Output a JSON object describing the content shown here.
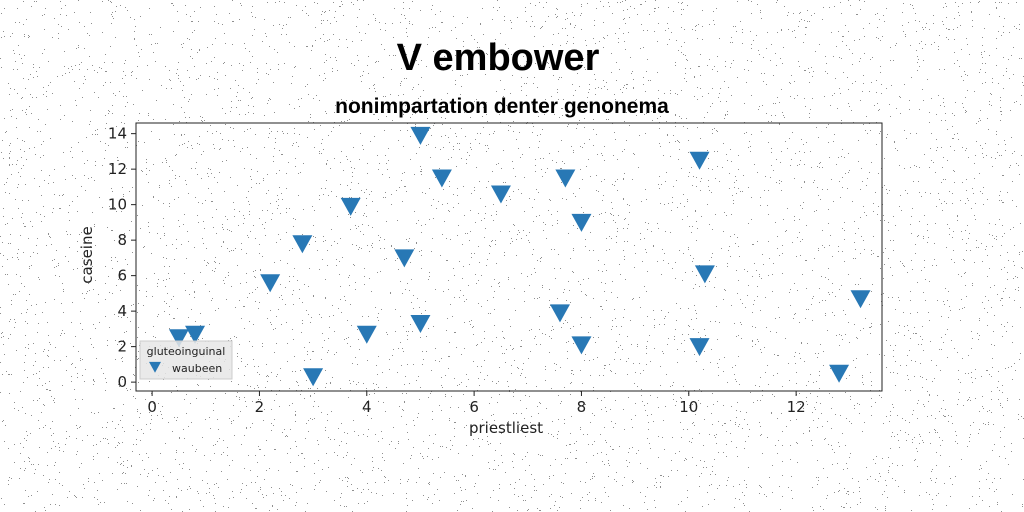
{
  "chart_data": {
    "type": "scatter",
    "title": "V embower",
    "subtitle": "nonimpartation denter genonema",
    "xlabel": "priestliest",
    "ylabel": "caseine",
    "xlim": [
      -0.3,
      13.6
    ],
    "ylim": [
      -0.5,
      14.6
    ],
    "xticks": [
      0,
      2,
      4,
      6,
      8,
      10,
      12
    ],
    "yticks": [
      0,
      2,
      4,
      6,
      8,
      10,
      12,
      14
    ],
    "grid": false,
    "legend": {
      "title": "gluteoinguinal",
      "placement": "lower-left"
    },
    "marker": "triangle-down",
    "series": [
      {
        "name": "waubeen",
        "color": "#2878b5",
        "points": [
          [
            0.5,
            2.5
          ],
          [
            0.8,
            2.7
          ],
          [
            2.2,
            5.6
          ],
          [
            2.8,
            7.8
          ],
          [
            3.0,
            0.3
          ],
          [
            3.7,
            9.9
          ],
          [
            4.0,
            2.7
          ],
          [
            4.7,
            7.0
          ],
          [
            5.0,
            13.9
          ],
          [
            5.0,
            3.3
          ],
          [
            5.4,
            11.5
          ],
          [
            6.5,
            10.6
          ],
          [
            7.6,
            3.9
          ],
          [
            7.7,
            11.5
          ],
          [
            8.0,
            9.0
          ],
          [
            8.0,
            2.1
          ],
          [
            10.2,
            2.0
          ],
          [
            10.2,
            12.5
          ],
          [
            10.3,
            6.1
          ],
          [
            12.8,
            0.5
          ],
          [
            13.2,
            4.7
          ]
        ]
      }
    ]
  }
}
